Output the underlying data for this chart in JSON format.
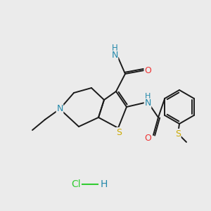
{
  "background_color": "#ebebeb",
  "bond_color": "#1a1a1a",
  "bond_width": 1.4,
  "atom_colors": {
    "N": "#2288aa",
    "O": "#ee3333",
    "S": "#ccaa00",
    "C": "#1a1a1a",
    "H": "#2288aa",
    "Cl": "#33cc33"
  },
  "font_size": 8.5,
  "hcl_font_size": 10
}
